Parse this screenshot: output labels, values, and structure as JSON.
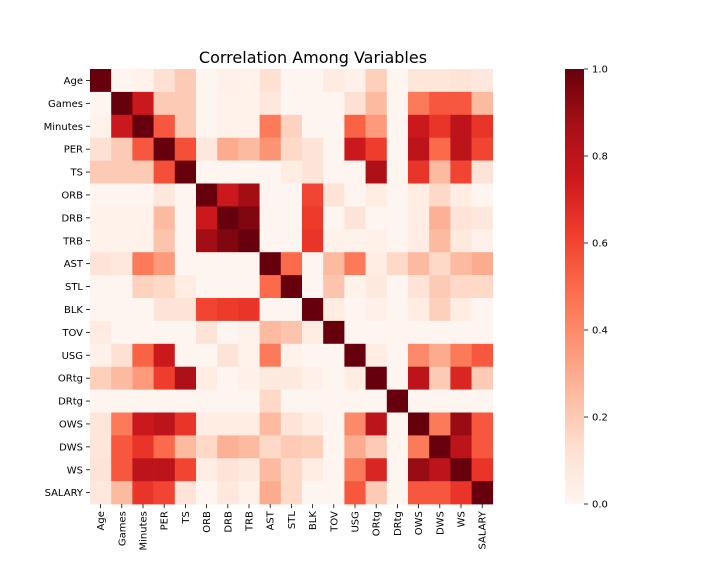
{
  "chart_data": {
    "type": "heatmap",
    "title": "Correlation Among Variables",
    "xlabel": "",
    "ylabel": "",
    "variables": [
      "Age",
      "Games",
      "Minutes",
      "PER",
      "TS",
      "ORB",
      "DRB",
      "TRB",
      "AST",
      "STL",
      "BLK",
      "TOV",
      "USG",
      "ORtg",
      "DRtg",
      "OWS",
      "DWS",
      "WS",
      "SALARY"
    ],
    "colorscale": "Reds",
    "colorbar": {
      "range": [
        0.0,
        1.0
      ],
      "ticks": [
        "0.0",
        "0.2",
        "0.4",
        "0.6",
        "0.8",
        "1.0"
      ]
    },
    "matrix": [
      [
        1.0,
        0.0,
        0.02,
        0.12,
        0.2,
        0.0,
        0.03,
        0.02,
        0.12,
        0.0,
        0.0,
        0.06,
        0.03,
        0.18,
        0.0,
        0.09,
        0.09,
        0.1,
        0.08
      ],
      [
        0.0,
        1.0,
        0.75,
        0.2,
        0.2,
        0.0,
        0.02,
        0.02,
        0.08,
        0.0,
        0.0,
        0.0,
        0.12,
        0.25,
        0.0,
        0.45,
        0.55,
        0.55,
        0.25
      ],
      [
        0.02,
        0.75,
        1.0,
        0.55,
        0.2,
        0.0,
        0.02,
        0.02,
        0.45,
        0.17,
        0.0,
        0.0,
        0.52,
        0.35,
        0.0,
        0.75,
        0.65,
        0.8,
        0.65
      ],
      [
        0.12,
        0.2,
        0.55,
        1.0,
        0.57,
        0.08,
        0.3,
        0.25,
        0.37,
        0.15,
        0.1,
        0.0,
        0.75,
        0.62,
        0.0,
        0.8,
        0.5,
        0.8,
        0.6
      ],
      [
        0.2,
        0.2,
        0.2,
        0.57,
        1.0,
        0.0,
        0.0,
        0.0,
        0.0,
        0.05,
        0.1,
        0.0,
        0.0,
        0.85,
        0.0,
        0.65,
        0.25,
        0.6,
        0.1
      ],
      [
        0.0,
        0.0,
        0.0,
        0.08,
        0.0,
        1.0,
        0.75,
        0.88,
        0.0,
        0.0,
        0.6,
        0.1,
        0.0,
        0.05,
        0.0,
        0.05,
        0.15,
        0.05,
        0.0
      ],
      [
        0.02,
        0.02,
        0.02,
        0.25,
        0.0,
        0.75,
        1.0,
        0.95,
        0.0,
        0.0,
        0.63,
        0.0,
        0.1,
        0.0,
        0.0,
        0.05,
        0.28,
        0.1,
        0.08
      ],
      [
        0.02,
        0.02,
        0.02,
        0.22,
        0.0,
        0.88,
        0.95,
        1.0,
        0.0,
        0.0,
        0.65,
        0.02,
        0.02,
        0.03,
        0.0,
        0.05,
        0.25,
        0.07,
        0.03
      ],
      [
        0.1,
        0.08,
        0.45,
        0.35,
        0.0,
        0.0,
        0.0,
        0.0,
        1.0,
        0.5,
        0.0,
        0.25,
        0.45,
        0.05,
        0.15,
        0.25,
        0.15,
        0.25,
        0.3
      ],
      [
        0.0,
        0.0,
        0.17,
        0.15,
        0.05,
        0.0,
        0.0,
        0.0,
        0.5,
        1.0,
        0.0,
        0.22,
        0.02,
        0.07,
        0.0,
        0.1,
        0.2,
        0.15,
        0.15
      ],
      [
        0.0,
        0.0,
        0.0,
        0.1,
        0.1,
        0.6,
        0.63,
        0.65,
        0.0,
        0.0,
        1.0,
        0.05,
        0.0,
        0.03,
        0.0,
        0.05,
        0.18,
        0.05,
        0.0
      ],
      [
        0.06,
        0.0,
        0.0,
        0.0,
        0.0,
        0.1,
        0.0,
        0.02,
        0.25,
        0.22,
        0.05,
        1.0,
        0.0,
        0.0,
        0.0,
        0.0,
        0.0,
        0.0,
        0.0
      ],
      [
        0.03,
        0.12,
        0.52,
        0.75,
        0.0,
        0.0,
        0.1,
        0.02,
        0.45,
        0.02,
        0.0,
        0.0,
        1.0,
        0.05,
        0.0,
        0.4,
        0.3,
        0.45,
        0.55
      ],
      [
        0.18,
        0.25,
        0.35,
        0.62,
        0.85,
        0.05,
        0.0,
        0.03,
        0.07,
        0.07,
        0.03,
        0.0,
        0.05,
        1.0,
        0.0,
        0.8,
        0.2,
        0.7,
        0.2
      ],
      [
        0.0,
        0.0,
        0.0,
        0.0,
        0.0,
        0.0,
        0.0,
        0.0,
        0.15,
        0.0,
        0.0,
        0.0,
        0.0,
        0.0,
        1.0,
        0.0,
        0.0,
        0.0,
        0.0
      ],
      [
        0.09,
        0.45,
        0.75,
        0.8,
        0.65,
        0.05,
        0.05,
        0.05,
        0.25,
        0.1,
        0.05,
        0.0,
        0.4,
        0.8,
        0.0,
        1.0,
        0.45,
        0.9,
        0.55
      ],
      [
        0.09,
        0.55,
        0.65,
        0.5,
        0.25,
        0.15,
        0.28,
        0.25,
        0.15,
        0.2,
        0.18,
        0.0,
        0.3,
        0.2,
        0.0,
        0.45,
        1.0,
        0.8,
        0.55
      ],
      [
        0.1,
        0.55,
        0.8,
        0.8,
        0.6,
        0.05,
        0.1,
        0.07,
        0.25,
        0.15,
        0.05,
        0.0,
        0.45,
        0.7,
        0.0,
        0.9,
        0.8,
        1.0,
        0.65
      ],
      [
        0.08,
        0.25,
        0.65,
        0.6,
        0.1,
        0.0,
        0.08,
        0.03,
        0.3,
        0.15,
        0.0,
        0.0,
        0.55,
        0.2,
        0.0,
        0.55,
        0.55,
        0.65,
        1.0
      ]
    ]
  }
}
